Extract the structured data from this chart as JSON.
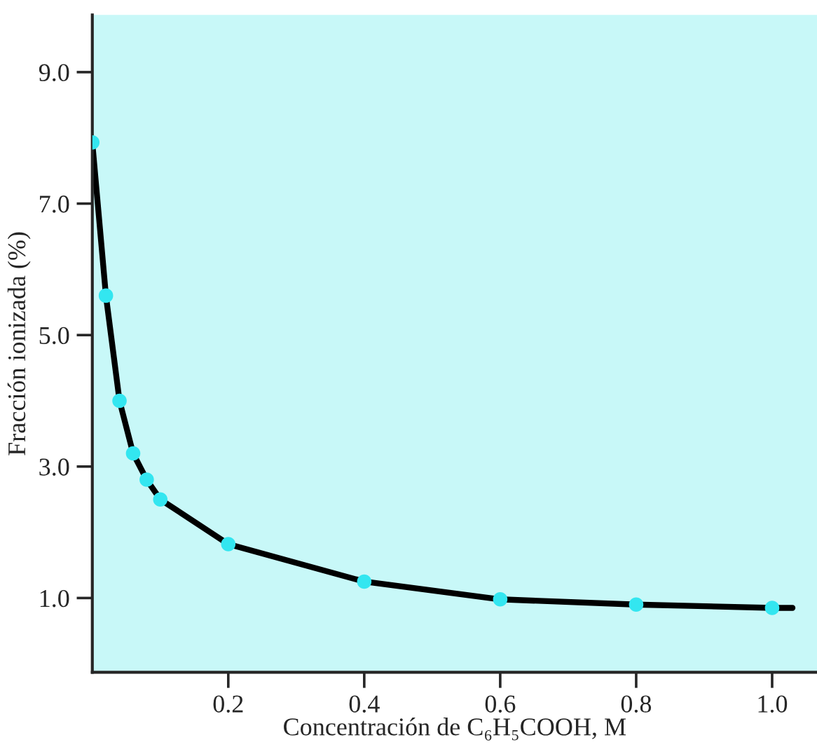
{
  "chart_data": {
    "type": "line",
    "xlabel": "Concentración de C₆H₅COOH, M",
    "ylabel": "Fracción ionizada (%)",
    "xlim": [
      0,
      1.066
    ],
    "ylim": [
      -0.13,
      9.87
    ],
    "xticks": [
      0.2,
      0.4,
      0.6,
      0.8,
      {
        "value": 1.0,
        "label": "1.0"
      }
    ],
    "yticks": [
      {
        "value": 1.0,
        "label": "1.0"
      },
      {
        "value": 3.0,
        "label": "3.0"
      },
      {
        "value": 5.0,
        "label": "5.0"
      },
      {
        "value": 7.0,
        "label": "7.0"
      },
      {
        "value": 9.0,
        "label": "9.0"
      }
    ],
    "grid": false,
    "series": [
      {
        "color": "#000000",
        "marker": "none",
        "x": [
          0,
          0.02,
          0.04,
          0.06,
          0.08,
          0.1,
          0.2,
          0.4,
          0.6,
          0.8,
          1.0,
          1.03
        ],
        "values": [
          7.93,
          5.6,
          4.0,
          3.2,
          2.8,
          2.5,
          1.82,
          1.25,
          0.98,
          0.9,
          0.85,
          0.85
        ]
      },
      {
        "type": "scatter",
        "color": "#33e6f0",
        "marker": "circle",
        "x": [
          0,
          0.02,
          0.04,
          0.06,
          0.08,
          0.1,
          0.2,
          0.4,
          0.6,
          0.8,
          1.0
        ],
        "values": [
          7.93,
          5.6,
          4.0,
          3.2,
          2.8,
          2.5,
          1.82,
          1.25,
          0.98,
          0.9,
          0.85
        ]
      }
    ]
  }
}
